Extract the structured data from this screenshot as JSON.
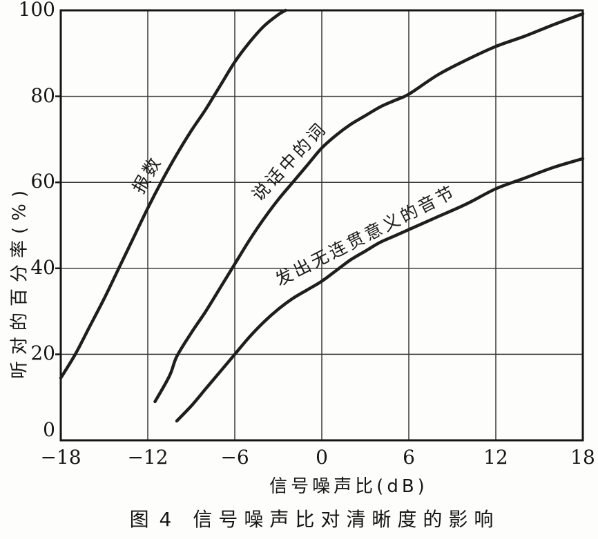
{
  "figure": {
    "caption_prefix": "图 4",
    "caption": "信号噪声比对清晰度的影响"
  },
  "chart_data": {
    "type": "line",
    "title": "",
    "xlabel": "信号噪声比(dB)",
    "ylabel": "听对的百分率(%)",
    "xlim": [
      -18,
      18
    ],
    "ylim": [
      0,
      100
    ],
    "x_ticks": [
      -18,
      -12,
      -6,
      0,
      6,
      12,
      18
    ],
    "x_tick_labels": [
      "−18",
      "−12",
      "−6",
      "0",
      "6",
      "12",
      "18"
    ],
    "y_ticks": [
      0,
      20,
      40,
      60,
      80,
      100
    ],
    "y_tick_labels": [
      "0",
      "20",
      "40",
      "60",
      "80",
      "100"
    ],
    "grid": true,
    "legend": "inline-curve-labels",
    "line_color": "#1e1e1e",
    "grid_color": "#3a3a3a",
    "series": [
      {
        "id": "counting",
        "name": "报数",
        "points": [
          [
            -18,
            14.5
          ],
          [
            -17,
            20
          ],
          [
            -16,
            26.5
          ],
          [
            -15,
            33
          ],
          [
            -14,
            40
          ],
          [
            -13,
            47
          ],
          [
            -12,
            54
          ],
          [
            -11,
            60.5
          ],
          [
            -10,
            66.5
          ],
          [
            -9,
            72
          ],
          [
            -8,
            77
          ],
          [
            -7,
            82.5
          ],
          [
            -6,
            88
          ],
          [
            -5,
            92.5
          ],
          [
            -4,
            96.3
          ],
          [
            -3,
            99
          ],
          [
            -2.5,
            100
          ]
        ],
        "label": {
          "x": -12.1,
          "y": 62,
          "angle": -60
        }
      },
      {
        "id": "words-in-speech",
        "name": "说话中的词",
        "points": [
          [
            -11.5,
            9
          ],
          [
            -10.5,
            15
          ],
          [
            -10,
            19.5
          ],
          [
            -9,
            25
          ],
          [
            -8,
            30
          ],
          [
            -7,
            35.5
          ],
          [
            -6,
            41
          ],
          [
            -5,
            46.5
          ],
          [
            -4,
            51.5
          ],
          [
            -3,
            56
          ],
          [
            -2,
            60
          ],
          [
            -1,
            64
          ],
          [
            0,
            68
          ],
          [
            1,
            71
          ],
          [
            2,
            73.5
          ],
          [
            3,
            75.5
          ],
          [
            4,
            77.5
          ],
          [
            5,
            79
          ],
          [
            6,
            80.5
          ],
          [
            8,
            85
          ],
          [
            10,
            88.5
          ],
          [
            12,
            91.6
          ],
          [
            14,
            94
          ],
          [
            16,
            96.7
          ],
          [
            18,
            99.2
          ]
        ],
        "label": {
          "x": -2.3,
          "y": 65,
          "angle": -47
        }
      },
      {
        "id": "nonsense-syllables",
        "name": "发出无连贯意义的音节",
        "points": [
          [
            -10,
            4.5
          ],
          [
            -9,
            8
          ],
          [
            -8,
            12
          ],
          [
            -7,
            16
          ],
          [
            -6,
            20
          ],
          [
            -5,
            24
          ],
          [
            -4,
            27.5
          ],
          [
            -3,
            30.5
          ],
          [
            -2,
            33
          ],
          [
            -1,
            35
          ],
          [
            0,
            37
          ],
          [
            1,
            39.5
          ],
          [
            2,
            42
          ],
          [
            3,
            44
          ],
          [
            4,
            46
          ],
          [
            5,
            47.5
          ],
          [
            6,
            49
          ],
          [
            8,
            52
          ],
          [
            10,
            55
          ],
          [
            12,
            58.5
          ],
          [
            14,
            61
          ],
          [
            16,
            63.5
          ],
          [
            18,
            65.5
          ]
        ],
        "label": {
          "x": 3.0,
          "y": 47.8,
          "angle": -27
        }
      }
    ]
  }
}
